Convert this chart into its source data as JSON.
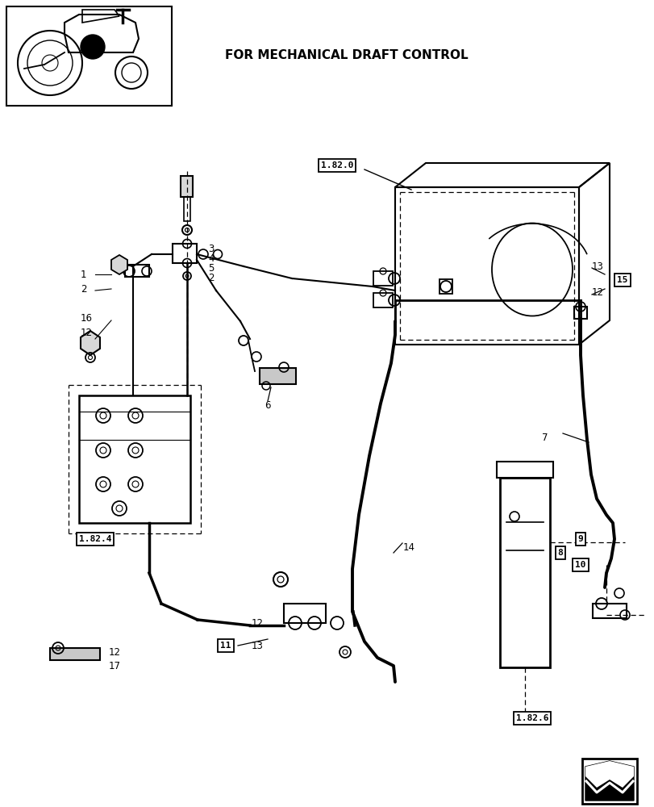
{
  "title": "FOR MECHANICAL DRAFT CONTROL",
  "bg_color": "#ffffff",
  "fig_width": 8.12,
  "fig_height": 10.0
}
